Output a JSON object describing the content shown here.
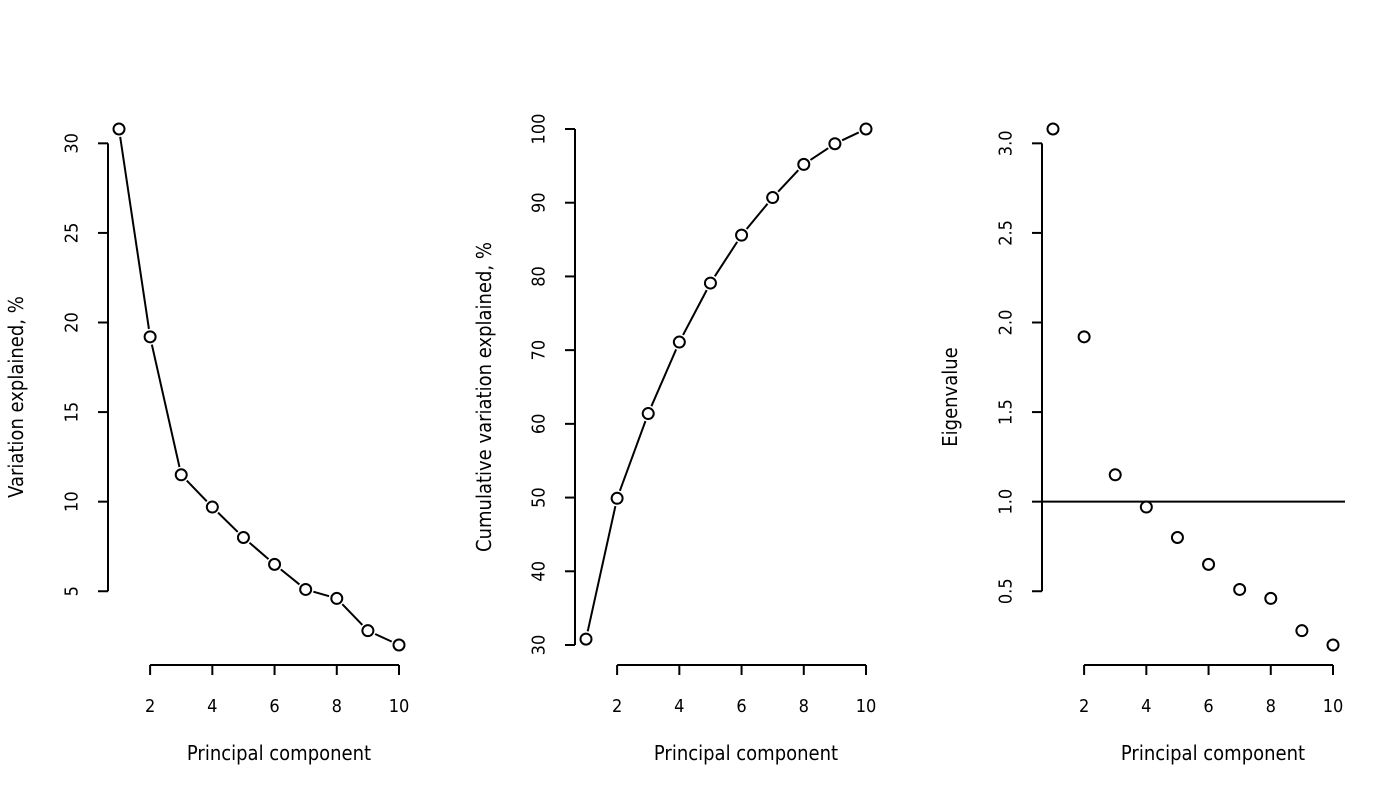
{
  "chart_data": [
    {
      "type": "line",
      "markers": "open-circle",
      "connect": true,
      "xlabel": "Principal component",
      "ylabel": "Variation explained, %",
      "x": [
        1,
        2,
        3,
        4,
        5,
        6,
        7,
        8,
        9,
        10
      ],
      "values": [
        30.8,
        19.2,
        11.5,
        9.7,
        8.0,
        6.5,
        5.1,
        4.6,
        2.8,
        2.0
      ],
      "xticks": [
        2,
        4,
        6,
        8,
        10
      ],
      "yticks": [
        5,
        10,
        15,
        20,
        25,
        30
      ],
      "xlim": [
        1,
        10
      ],
      "ylim": [
        2,
        30.8
      ],
      "grid": false
    },
    {
      "type": "line",
      "markers": "open-circle",
      "connect": true,
      "xlabel": "Principal component",
      "ylabel": "Cumulative variation explained, %",
      "x": [
        1,
        2,
        3,
        4,
        5,
        6,
        7,
        8,
        9,
        10
      ],
      "values": [
        30.8,
        49.9,
        61.4,
        71.1,
        79.1,
        85.6,
        90.7,
        95.2,
        98.0,
        100.0
      ],
      "xticks": [
        2,
        4,
        6,
        8,
        10
      ],
      "yticks": [
        30,
        40,
        50,
        60,
        70,
        80,
        90,
        100
      ],
      "xlim": [
        1,
        10
      ],
      "ylim": [
        30,
        100
      ],
      "grid": false
    },
    {
      "type": "scatter",
      "markers": "open-circle",
      "connect": false,
      "xlabel": "Principal component",
      "ylabel": "Eigenvalue",
      "x": [
        1,
        2,
        3,
        4,
        5,
        6,
        7,
        8,
        9,
        10
      ],
      "values": [
        3.08,
        1.92,
        1.15,
        0.97,
        0.8,
        0.65,
        0.51,
        0.46,
        0.28,
        0.2
      ],
      "xticks": [
        2,
        4,
        6,
        8,
        10
      ],
      "yticks": [
        0.5,
        1.0,
        1.5,
        2.0,
        2.5,
        3.0
      ],
      "ytick_labels": [
        "0.5",
        "1.0",
        "1.5",
        "2.0",
        "2.5",
        "3.0"
      ],
      "xlim": [
        1,
        10
      ],
      "ylim": [
        0.2,
        3.08
      ],
      "reference_line": {
        "orientation": "horizontal",
        "y": 1.0
      },
      "grid": false
    }
  ]
}
